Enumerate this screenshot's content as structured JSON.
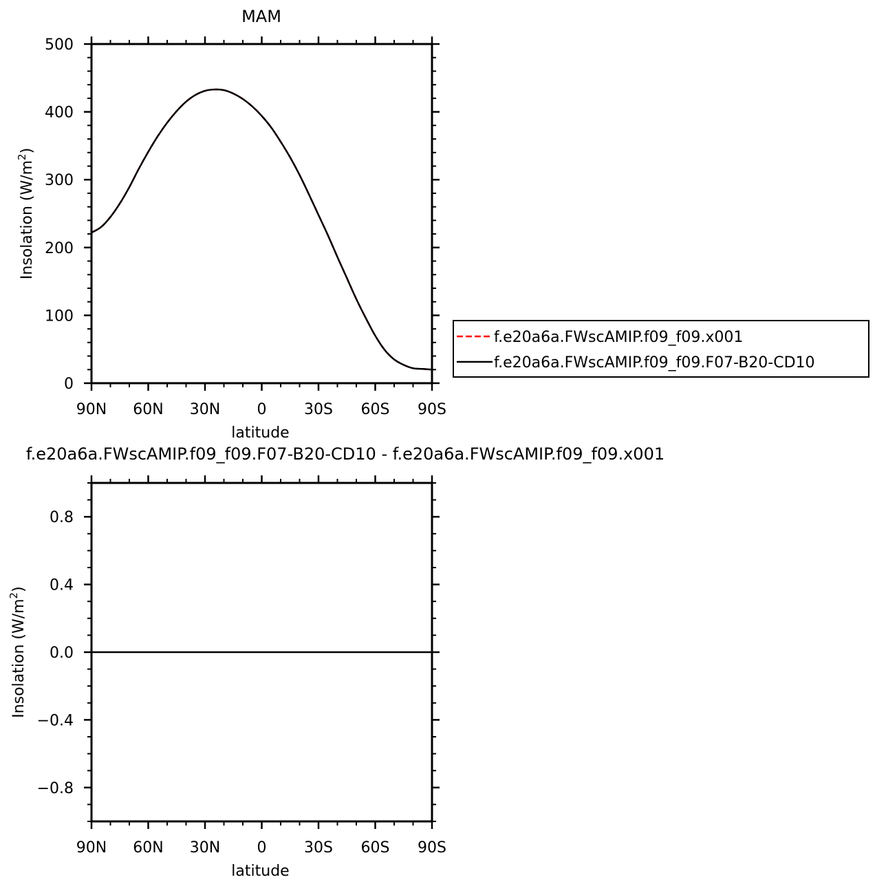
{
  "chart_data": [
    {
      "type": "line",
      "title": "MAM",
      "xlabel": "latitude",
      "ylabel": "Insolation (W/m",
      "ylabel_sup": "2",
      "ylabel_end": ")",
      "xlim": [
        90,
        -90
      ],
      "ylim": [
        0,
        500
      ],
      "xticks": [
        90,
        60,
        30,
        0,
        -30,
        -60,
        -90
      ],
      "xticklabels": [
        "90N",
        "60N",
        "30N",
        "0",
        "30S",
        "60S",
        "90S"
      ],
      "yticks": [
        0,
        100,
        200,
        300,
        400,
        500
      ],
      "yticklabels": [
        "0",
        "100",
        "200",
        "300",
        "400",
        "500"
      ],
      "grid": false,
      "legend_placement": "right",
      "x": [
        90,
        85,
        80,
        75,
        70,
        65,
        60,
        55,
        50,
        45,
        40,
        35,
        30,
        25,
        20,
        15,
        10,
        5,
        0,
        -5,
        -10,
        -15,
        -20,
        -25,
        -30,
        -35,
        -40,
        -45,
        -50,
        -55,
        -60,
        -65,
        -70,
        -75,
        -80,
        -85,
        -90
      ],
      "series": [
        {
          "name": "f.e20a6a.FWscAMIP.f09_f09.x001",
          "color": "#ff0000",
          "dash": "dashed",
          "values": [
            222,
            230,
            245,
            265,
            289,
            316,
            341,
            364,
            384,
            401,
            415,
            425,
            431,
            433,
            432,
            427,
            419,
            408,
            394,
            377,
            356,
            333,
            307,
            278,
            248,
            218,
            186,
            155,
            124,
            96,
            70,
            49,
            35,
            27,
            22,
            21,
            20
          ]
        },
        {
          "name": "f.e20a6a.FWscAMIP.f09_f09.F07-B20-CD10",
          "color": "#000000",
          "dash": "solid",
          "values": [
            222,
            230,
            245,
            265,
            289,
            316,
            341,
            364,
            384,
            401,
            415,
            425,
            431,
            433,
            432,
            427,
            419,
            408,
            394,
            377,
            356,
            333,
            307,
            278,
            248,
            218,
            186,
            155,
            124,
            96,
            70,
            49,
            35,
            27,
            22,
            21,
            20
          ]
        }
      ]
    },
    {
      "type": "line",
      "title": "f.e20a6a.FWscAMIP.f09_f09.F07-B20-CD10 - f.e20a6a.FWscAMIP.f09_f09.x001",
      "xlabel": "latitude",
      "ylabel": "Insolation (W/m",
      "ylabel_sup": "2",
      "ylabel_end": ")",
      "xlim": [
        90,
        -90
      ],
      "ylim": [
        -1,
        1
      ],
      "xticks": [
        90,
        60,
        30,
        0,
        -30,
        -60,
        -90
      ],
      "xticklabels": [
        "90N",
        "60N",
        "30N",
        "0",
        "30S",
        "60S",
        "90S"
      ],
      "yticks": [
        -0.8,
        -0.4,
        0.0,
        0.4,
        0.8
      ],
      "yticklabels": [
        "−0.8",
        "−0.4",
        "0.0",
        "0.4",
        "0.8"
      ],
      "grid": false,
      "x": [
        90,
        -90
      ],
      "series": [
        {
          "color": "#000000",
          "dash": "solid",
          "values": [
            0,
            0
          ]
        }
      ]
    }
  ]
}
